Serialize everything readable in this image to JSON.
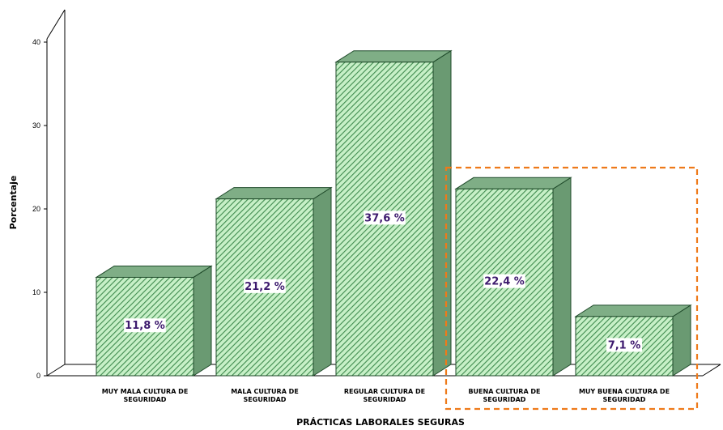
{
  "chart_data": {
    "type": "bar",
    "categories": [
      "MUY MALA CULTURA DE SEGURIDAD",
      "MALA CULTURA DE SEGURIDAD",
      "REGULAR CULTURA DE SEGURIDAD",
      "BUENA CULTURA DE SEGURIDAD",
      "MUY BUENA CULTURA DE SEGURIDAD"
    ],
    "category_lines": [
      [
        "MUY MALA CULTURA DE",
        "SEGURIDAD"
      ],
      [
        "MALA CULTURA DE",
        "SEGURIDAD"
      ],
      [
        "REGULAR CULTURA DE",
        "SEGURIDAD"
      ],
      [
        "BUENA CULTURA DE",
        "SEGURIDAD"
      ],
      [
        "MUY BUENA CULTURA DE",
        "SEGURIDAD"
      ]
    ],
    "values": [
      11.8,
      21.2,
      37.6,
      22.4,
      7.1
    ],
    "data_labels": [
      "11,8 %",
      "21,2 %",
      "37,6 %",
      "22,4 %",
      "7,1 %"
    ],
    "xlabel": "PRÁCTICAS LABORALES SEGURAS",
    "ylabel": "Porcentaje",
    "ylim": [
      0,
      40
    ],
    "yticks": [
      "0",
      "10",
      "20",
      "30",
      "40"
    ],
    "highlight": {
      "categories": [
        3,
        4
      ],
      "color": "#ee7a1a",
      "style": "dashed"
    },
    "colors": {
      "bar_front": "#c7f0c7",
      "bar_hatch": "#3f8a4e",
      "bar_side": "#6a9a72",
      "bar_top": "#7fae86",
      "bar_edge": "#1f4a2a"
    },
    "grid": false,
    "legend": "none"
  }
}
